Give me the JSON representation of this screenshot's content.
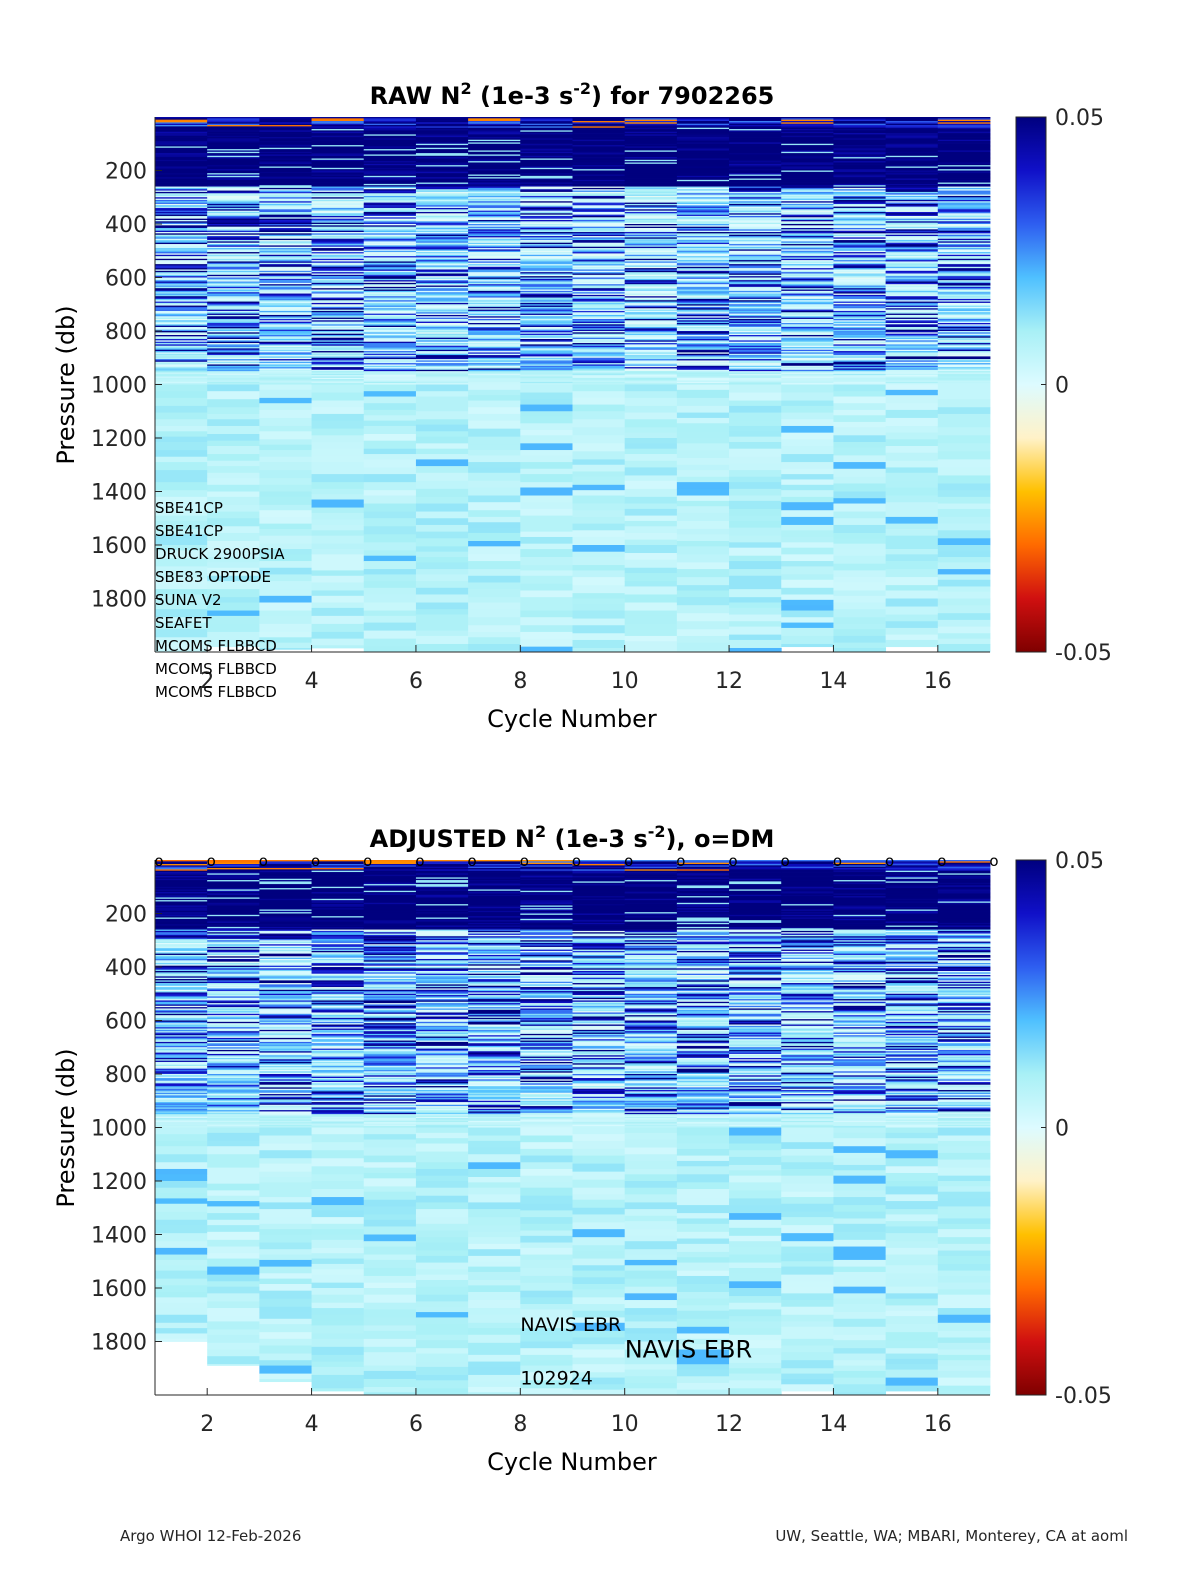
{
  "colors": {
    "colormap": [
      "#7f0000",
      "#d01010",
      "#ff6a00",
      "#ffc000",
      "#fff2c8",
      "#ddfbff",
      "#a8f0f6",
      "#4fc0ff",
      "#2e5ef0",
      "#1010c8",
      "#00007f"
    ],
    "axis": "#262626",
    "empty": "#ffffff"
  },
  "chart_data": [
    {
      "id": "raw",
      "type": "heatmap",
      "title": "RAW N² (1e-3 s⁻²) for 7902265",
      "title_parts": {
        "prefix": "RAW N",
        "sup1": "2",
        "mid": " (1e-3 s",
        "sup2": "-2",
        "suffix": ") for 7902265"
      },
      "xlabel": "Cycle Number",
      "ylabel": "Pressure (db)",
      "xlim": [
        1,
        17
      ],
      "ylim": [
        0,
        2000
      ],
      "x_ticks": [
        2,
        4,
        6,
        8,
        10,
        12,
        14,
        16
      ],
      "y_ticks": [
        200,
        400,
        600,
        800,
        1000,
        1200,
        1400,
        1600,
        1800
      ],
      "colorbar": {
        "clim": [
          -0.05,
          0.05
        ],
        "tick_labels": [
          "0.05",
          "0",
          "-0.05"
        ]
      },
      "cycles": [
        1,
        2,
        3,
        4,
        5,
        6,
        7,
        8,
        9,
        10,
        11,
        12,
        13,
        14,
        15,
        16
      ],
      "max_pressure": [
        2000,
        1980,
        1990,
        1985,
        2000,
        2000,
        2000,
        2000,
        2000,
        2000,
        2000,
        2000,
        1980,
        2000,
        1980,
        2000
      ],
      "sensor_labels": [
        "SBE41CP",
        "SBE41CP",
        "DRUCK 2900PSIA",
        "SBE83 OPTODE",
        "SUNA V2",
        "SEAFET",
        "MCOMS FLBBCD",
        "MCOMS FLBBCD",
        "MCOMS FLBBCD"
      ],
      "annotations": [],
      "dm_markers": false
    },
    {
      "id": "adjusted",
      "type": "heatmap",
      "title": "ADJUSTED N² (1e-3 s⁻²), o=DM",
      "title_parts": {
        "prefix": "ADJUSTED N",
        "sup1": "2",
        "mid": " (1e-3 s",
        "sup2": "-2",
        "suffix": "), o=DM"
      },
      "xlabel": "Cycle Number",
      "ylabel": "Pressure (db)",
      "xlim": [
        1,
        17
      ],
      "ylim": [
        0,
        2000
      ],
      "x_ticks": [
        2,
        4,
        6,
        8,
        10,
        12,
        14,
        16
      ],
      "y_ticks": [
        200,
        400,
        600,
        800,
        1000,
        1200,
        1400,
        1600,
        1800
      ],
      "colorbar": {
        "clim": [
          -0.05,
          0.05
        ],
        "tick_labels": [
          "0.05",
          "0",
          "-0.05"
        ]
      },
      "cycles": [
        1,
        2,
        3,
        4,
        5,
        6,
        7,
        8,
        9,
        10,
        11,
        12,
        13,
        14,
        15,
        16
      ],
      "max_pressure": [
        1800,
        1890,
        1950,
        1985,
        2000,
        2000,
        2000,
        2000,
        2000,
        2000,
        2000,
        2000,
        1985,
        2000,
        1985,
        2000
      ],
      "sensor_labels": [],
      "annotations": [
        {
          "text": "NAVIS EBR",
          "x": 8.0,
          "y": 1730,
          "size": "small"
        },
        {
          "text": "NAVIS EBR",
          "x": 10.0,
          "y": 1830,
          "size": "large"
        },
        {
          "text": "102924",
          "x": 8.0,
          "y": 1930,
          "size": "small"
        }
      ],
      "dm_markers": true,
      "dm_marker_label": "o",
      "dm_cycles": [
        1,
        2,
        3,
        4,
        5,
        6,
        7,
        8,
        9,
        10,
        11,
        12,
        13,
        14,
        15,
        16,
        17
      ]
    }
  ],
  "footer": {
    "left": "Argo WHOI 12-Feb-2026",
    "right": "UW, Seattle, WA; MBARI, Monterey, CA at aoml"
  }
}
